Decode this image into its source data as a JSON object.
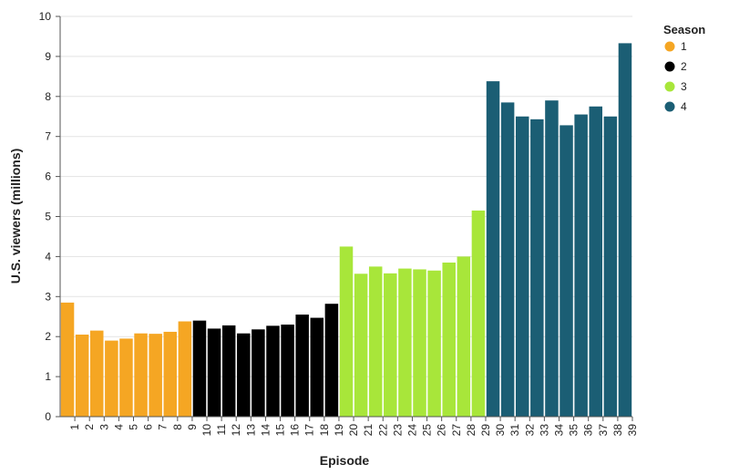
{
  "chart_data": {
    "type": "bar",
    "xlabel": "Episode",
    "ylabel": "U.S. viewers (millions)",
    "ylim": [
      0,
      10
    ],
    "y_ticks": [
      0,
      1,
      2,
      3,
      4,
      5,
      6,
      7,
      8,
      9,
      10
    ],
    "grid": "horizontal",
    "legend": {
      "title": "Season",
      "position": "top-right",
      "items": [
        {
          "label": "1",
          "color": "#f5a623"
        },
        {
          "label": "2",
          "color": "#000000"
        },
        {
          "label": "3",
          "color": "#a8e63a"
        },
        {
          "label": "4",
          "color": "#1b5e74"
        }
      ]
    },
    "x_tick_labels": [
      "1",
      "2",
      "3",
      "4",
      "5",
      "6",
      "7",
      "8",
      "9",
      "10",
      "11",
      "12",
      "13",
      "14",
      "15",
      "16",
      "17",
      "18",
      "19",
      "20",
      "21",
      "22",
      "23",
      "24",
      "25",
      "26",
      "27",
      "28",
      "29",
      "30",
      "31",
      "32",
      "33",
      "34",
      "35",
      "36",
      "37",
      "38",
      "39"
    ],
    "bars": [
      {
        "episode": 1,
        "season": "1",
        "value": 2.85
      },
      {
        "episode": 2,
        "season": "1",
        "value": 2.05
      },
      {
        "episode": 3,
        "season": "1",
        "value": 2.15
      },
      {
        "episode": 4,
        "season": "1",
        "value": 1.9
      },
      {
        "episode": 5,
        "season": "1",
        "value": 1.95
      },
      {
        "episode": 6,
        "season": "1",
        "value": 2.08
      },
      {
        "episode": 7,
        "season": "1",
        "value": 2.07
      },
      {
        "episode": 8,
        "season": "1",
        "value": 2.12
      },
      {
        "episode": 9,
        "season": "1",
        "value": 2.38
      },
      {
        "episode": 10,
        "season": "2",
        "value": 2.4
      },
      {
        "episode": 11,
        "season": "2",
        "value": 2.2
      },
      {
        "episode": 12,
        "season": "2",
        "value": 2.28
      },
      {
        "episode": 13,
        "season": "2",
        "value": 2.08
      },
      {
        "episode": 14,
        "season": "2",
        "value": 2.18
      },
      {
        "episode": 15,
        "season": "2",
        "value": 2.27
      },
      {
        "episode": 16,
        "season": "2",
        "value": 2.3
      },
      {
        "episode": 17,
        "season": "2",
        "value": 2.55
      },
      {
        "episode": 18,
        "season": "2",
        "value": 2.47
      },
      {
        "episode": 19,
        "season": "2",
        "value": 2.82
      },
      {
        "episode": 20,
        "season": "3",
        "value": 4.25
      },
      {
        "episode": 21,
        "season": "3",
        "value": 3.57
      },
      {
        "episode": 22,
        "season": "3",
        "value": 3.75
      },
      {
        "episode": 23,
        "season": "3",
        "value": 3.58
      },
      {
        "episode": 24,
        "season": "3",
        "value": 3.7
      },
      {
        "episode": 25,
        "season": "3",
        "value": 3.68
      },
      {
        "episode": 26,
        "season": "3",
        "value": 3.65
      },
      {
        "episode": 27,
        "season": "3",
        "value": 3.85
      },
      {
        "episode": 28,
        "season": "3",
        "value": 4.0
      },
      {
        "episode": 29,
        "season": "3",
        "value": 5.15
      },
      {
        "episode": 30,
        "season": "4",
        "value": 8.38
      },
      {
        "episode": 31,
        "season": "4",
        "value": 7.85
      },
      {
        "episode": 32,
        "season": "4",
        "value": 7.5
      },
      {
        "episode": 33,
        "season": "4",
        "value": 7.43
      },
      {
        "episode": 34,
        "season": "4",
        "value": 7.9
      },
      {
        "episode": 35,
        "season": "4",
        "value": 7.28
      },
      {
        "episode": 36,
        "season": "4",
        "value": 7.55
      },
      {
        "episode": 37,
        "season": "4",
        "value": 7.75
      },
      {
        "episode": 38,
        "season": "4",
        "value": 7.5
      },
      {
        "episode": 39,
        "season": "4",
        "value": 9.33
      }
    ]
  }
}
